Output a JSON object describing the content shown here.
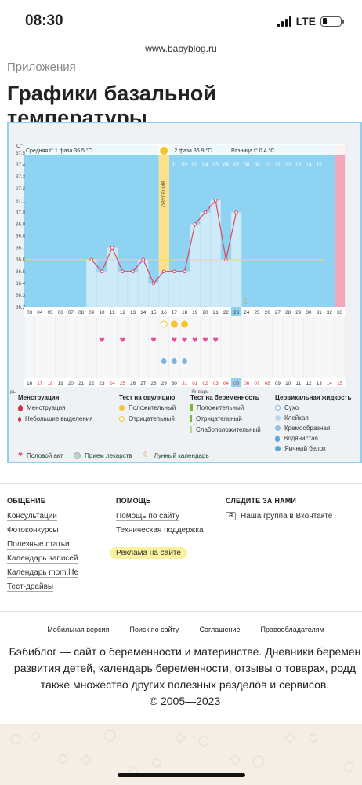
{
  "status_bar": {
    "time": "08:30",
    "network": "LTE"
  },
  "browser": {
    "url": "www.babyblog.ru"
  },
  "breadcrumb": "Приложения",
  "page_title": "Графики базальной температуры",
  "chart_data": {
    "type": "line",
    "y_unit": "С°",
    "y_ticks": [
      "37.5",
      "37.4",
      "37.3",
      "37.2",
      "37.1",
      "37.0",
      "36.9",
      "36.8",
      "36.7",
      "36.6",
      "36.5",
      "36.4",
      "36.3",
      "36.2"
    ],
    "ylim": [
      36.2,
      37.5
    ],
    "coverline": 36.6,
    "phase1_label": "Средняя t° 1 фаза",
    "phase1_value": "36.5 °С",
    "phase2_label": "2 фаза",
    "phase2_value": "36.9 °С",
    "diff_label": "Разница t°",
    "diff_value": "0.4 °С",
    "ovulation_label": "ОВУЛЯЦИЯ",
    "top_cycle_days": [
      "01",
      "02",
      "03",
      "04",
      "05",
      "06",
      "07",
      "08",
      "09",
      "10",
      "11",
      "12",
      "13",
      "14",
      "15"
    ],
    "cycle_days": [
      "03",
      "04",
      "05",
      "06",
      "07",
      "08",
      "09",
      "10",
      "11",
      "12",
      "13",
      "14",
      "15",
      "16",
      "17",
      "18",
      "19",
      "20",
      "21",
      "22",
      "23",
      "24",
      "25",
      "26",
      "27",
      "28",
      "29",
      "30",
      "31",
      "32",
      "33"
    ],
    "calendar_dates": [
      "16",
      "17",
      "18",
      "19",
      "20",
      "21",
      "22",
      "23",
      "24",
      "25",
      "26",
      "27",
      "28",
      "29",
      "30",
      "31",
      "01",
      "02",
      "03",
      "04",
      "05",
      "06",
      "07",
      "08",
      "09",
      "10",
      "11",
      "12",
      "13",
      "14",
      "15"
    ],
    "month_label": "Январь",
    "prev_month_fragment": "рь",
    "temps_by_cycle_day": {
      "09": 36.6,
      "10": 36.5,
      "11": 36.7,
      "12": 36.5,
      "13": 36.5,
      "14": 36.6,
      "15": 36.4,
      "16": 36.5,
      "17": 36.5,
      "18": 36.5,
      "19": 36.9,
      "20": 37.0,
      "21": 37.1,
      "22": 36.6,
      "23": 37.0
    },
    "positive_ovulation_test_days": [
      "17",
      "18"
    ],
    "negative_ovulation_test_days": [
      "16"
    ],
    "intercourse_days": [
      "10",
      "12",
      "15",
      "17",
      "18",
      "19",
      "20",
      "21"
    ],
    "fluid_days": [
      "16",
      "17",
      "18"
    ],
    "moon_day": "24",
    "today_day": "23"
  },
  "legend": {
    "menstruation": {
      "title": "Менструация",
      "items": [
        "Менструация",
        "Небольшие выделения"
      ]
    },
    "ovulation_test": {
      "title": "Тест на овуляцию",
      "items": [
        "Положительный",
        "Отрицательный"
      ]
    },
    "pregnancy_test": {
      "title": "Тест на беременность",
      "items": [
        "Положительный",
        "Отрицательный",
        "Слабоположительный"
      ]
    },
    "cervical_fluid": {
      "title": "Цервикальная жидкость",
      "items": [
        "Сухо",
        "Клейкая",
        "Кремообразная",
        "Водянистая",
        "Яичный белок"
      ]
    },
    "bottom": [
      "Половой акт",
      "Прием лекарств",
      "Лунный календарь"
    ]
  },
  "footer": {
    "col1": {
      "title": "ОБЩЕНИЕ",
      "links": [
        "Консультации",
        "Фотоконкурсы",
        "Полезные статьи",
        "Календарь записей",
        "Календарь mom.life",
        "Тест-драйвы"
      ]
    },
    "col2": {
      "title": "ПОМОЩЬ",
      "links": [
        "Помощь по сайту",
        "Техническая поддержка",
        "Реклама на сайте"
      ]
    },
    "col3": {
      "title": "СЛЕДИТЕ ЗА НАМИ",
      "links": [
        "Наша группа в Вконтакте"
      ]
    },
    "bottom_links": [
      "Мобильная версия",
      "Поиск по сайту",
      "Соглашение",
      "Правообладателям"
    ],
    "about_lines": [
      "Бэбиблог — сайт о беременности и материнстве. Дневники беремен",
      "развития детей, календарь беременности, отзывы о товарах, родд",
      "также множество других полезных разделов и сервисов.",
      "© 2005—2023"
    ]
  },
  "colors": {
    "accent_blue": "#8fd3f3",
    "line_red": "#e2455f",
    "ovulation_yellow": "#fde08a",
    "pink_heart": "#e84c9a"
  }
}
